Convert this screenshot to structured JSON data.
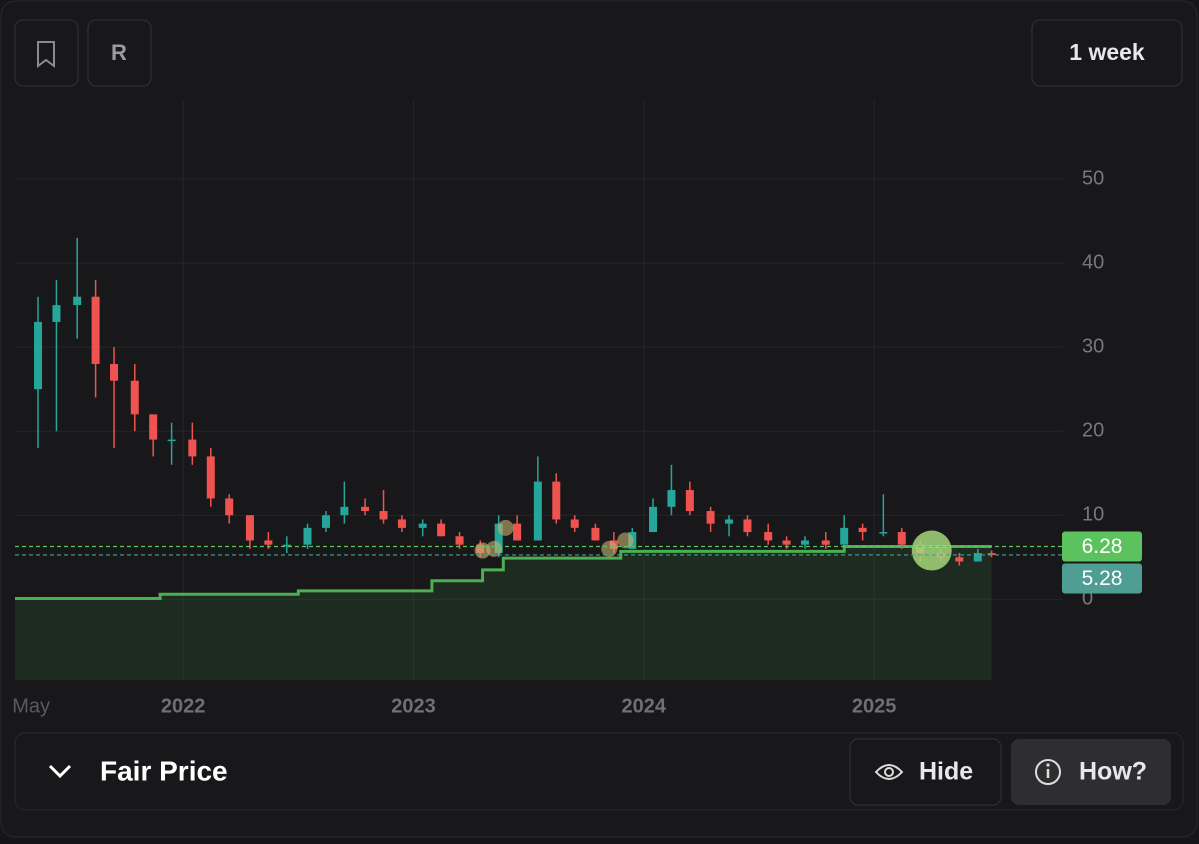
{
  "ui": {
    "ticker_button": "R",
    "interval_button": "1 week",
    "panel_title": "Fair Price",
    "hide_button": "Hide",
    "how_button": "How?"
  },
  "chart_data": {
    "type": "candlestick",
    "xlim": [
      2021.27,
      2025.82
    ],
    "ylim": [
      -9.6,
      59.4
    ],
    "xticks": [
      {
        "value": 2021.34,
        "label": "May"
      },
      {
        "value": 2022,
        "label": "2022"
      },
      {
        "value": 2023,
        "label": "2023"
      },
      {
        "value": 2024,
        "label": "2024"
      },
      {
        "value": 2025,
        "label": "2025"
      }
    ],
    "yticks": [
      0,
      10,
      20,
      30,
      40,
      50
    ],
    "grid": true,
    "up_color": "#26a69a",
    "down_color": "#ef5350",
    "candles": {
      "x": [
        2021.37,
        2021.45,
        2021.54,
        2021.62,
        2021.7,
        2021.79,
        2021.87,
        2021.95,
        2022.04,
        2022.12,
        2022.2,
        2022.29,
        2022.37,
        2022.45,
        2022.54,
        2022.62,
        2022.7,
        2022.79,
        2022.87,
        2022.95,
        2023.04,
        2023.12,
        2023.2,
        2023.29,
        2023.37,
        2023.45,
        2023.54,
        2023.62,
        2023.7,
        2023.79,
        2023.87,
        2023.95,
        2024.04,
        2024.12,
        2024.2,
        2024.29,
        2024.37,
        2024.45,
        2024.54,
        2024.62,
        2024.7,
        2024.79,
        2024.87,
        2024.95,
        2025.04,
        2025.12,
        2025.2,
        2025.29,
        2025.37,
        2025.45,
        2025.51
      ],
      "open": [
        25,
        33,
        35,
        36,
        28,
        26,
        22,
        19,
        19,
        17,
        12,
        10,
        7,
        6.5,
        6.5,
        8.5,
        10,
        11,
        10.5,
        9.5,
        8.5,
        9,
        7.5,
        6.5,
        5.5,
        9,
        7,
        14,
        9.5,
        8.5,
        7,
        6,
        8,
        11,
        13,
        10.5,
        9,
        9.5,
        8,
        7,
        6.5,
        7,
        6.5,
        8.5,
        8,
        8,
        6.5,
        5.5,
        5,
        4.5,
        5.5
      ],
      "high": [
        36,
        38,
        43,
        38,
        30,
        28,
        22,
        21,
        21,
        18,
        12.5,
        10,
        8,
        7.5,
        9,
        10.5,
        14,
        12,
        13,
        10,
        9.5,
        9.5,
        8,
        7,
        10,
        10,
        17,
        15,
        10,
        9,
        8,
        8.5,
        12,
        16,
        14,
        11,
        10,
        10,
        9,
        7.5,
        7.5,
        8,
        10,
        9,
        12.5,
        8.5,
        7,
        6,
        5.5,
        6,
        5.8
      ],
      "low": [
        18,
        20,
        31,
        24,
        18,
        20,
        17,
        16,
        16,
        11,
        9,
        6,
        6,
        5.5,
        6,
        8,
        9,
        10,
        9,
        8,
        7.5,
        7.5,
        6,
        5,
        5,
        7,
        7,
        9,
        8,
        7,
        5.5,
        6,
        8,
        10,
        10,
        8,
        7.5,
        7.5,
        6.5,
        6,
        6,
        6,
        6.5,
        7,
        7.5,
        6,
        4.5,
        4.5,
        4,
        4.5,
        5
      ],
      "close": [
        33,
        35,
        36,
        28,
        26,
        22,
        19,
        19,
        17,
        12,
        10,
        7,
        6.5,
        6.5,
        8.5,
        10,
        11,
        10.5,
        9.5,
        8.5,
        9,
        7.5,
        6.5,
        5.5,
        9,
        7,
        14,
        9.5,
        8.5,
        7,
        6,
        8,
        11,
        13,
        10.5,
        9,
        9.5,
        8,
        7,
        6.5,
        7,
        6.5,
        8.5,
        8,
        8,
        6.5,
        5.5,
        5,
        4.5,
        5.5,
        5.28
      ]
    },
    "series": [
      {
        "name": "Fair Price",
        "color": "#4caf50",
        "x": [
          2021.27,
          2021.9,
          2022.5,
          2023.08,
          2023.3,
          2023.39,
          2023.9,
          2024.87,
          2025.51
        ],
        "values": [
          0.1,
          0.6,
          1.0,
          2.2,
          3.5,
          4.9,
          5.7,
          6.28,
          6.28
        ]
      }
    ],
    "signals": {
      "x": [
        2023.3,
        2023.35,
        2023.4,
        2023.85,
        2023.92,
        2025.25
      ],
      "values": [
        5.8,
        6,
        8.5,
        6,
        7,
        5.8
      ],
      "sizes": [
        8,
        8,
        8,
        8,
        8,
        20
      ],
      "color": "#c8b070"
    },
    "price_markers": [
      {
        "value": 6.28,
        "color": "#5cc25e"
      },
      {
        "value": 5.28,
        "color": "#4f9e94"
      }
    ]
  }
}
